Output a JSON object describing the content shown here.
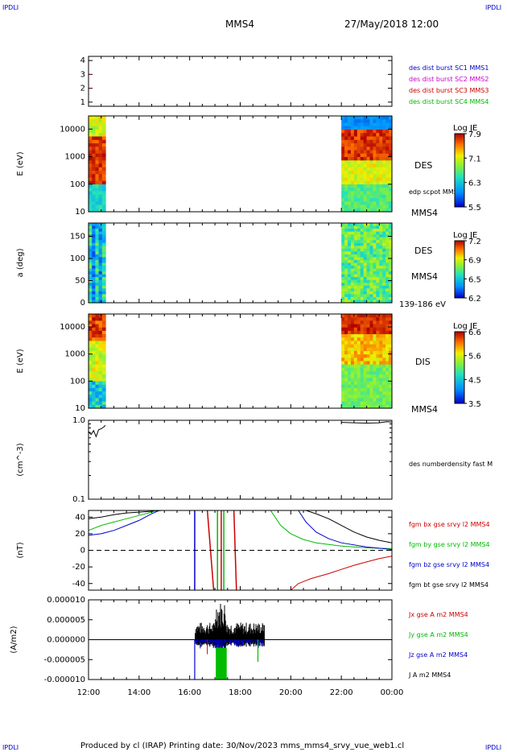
{
  "header": {
    "corner_left": "IPDLI",
    "corner_right": "IPDLI",
    "title": "MMS4",
    "datetime": "27/May/2018 12:00"
  },
  "footer": {
    "text": "Produced by cl (IRAP)   Printing date: 30/Nov/2023   mms_mms4_srvy_vue_web1.cl",
    "corner_left": "IPDLI",
    "corner_right": "IPDLI"
  },
  "colors": {
    "frame": "#000000",
    "blue": "#0000cc",
    "magenta": "#cc00cc",
    "red": "#cc0000",
    "green": "#00bb00",
    "black": "#000000"
  },
  "chart_data": [
    {
      "type": "line",
      "panel": "burst-flags",
      "ylabel": "",
      "ylim": [
        0.7,
        4.3
      ],
      "yticks": [
        "1",
        "2",
        "3",
        "4"
      ],
      "legend": [
        {
          "name": "des dist burst SC1 MMS1",
          "color": "#0000cc"
        },
        {
          "name": "des dist burst SC2 MMS2",
          "color": "#cc00cc"
        },
        {
          "name": "des dist burst SC3 MMS3",
          "color": "#cc0000"
        },
        {
          "name": "des dist burst SC4 MMS4",
          "color": "#00bb00"
        }
      ],
      "marks": [
        {
          "x": 0.05,
          "y": 3,
          "color": "#cc0000"
        },
        {
          "x": 0.05,
          "y": 2,
          "color": "#cc0000"
        }
      ]
    },
    {
      "type": "heatmap",
      "panel": "des-energy",
      "ylabel": "E (eV)",
      "scale": "log",
      "ylim": [
        10,
        30000
      ],
      "yticks": [
        "10",
        "100",
        "1000",
        "10000"
      ],
      "side_label": "DES",
      "overlay_label": "edp scpot MMS4",
      "bottom_label": "MMS4",
      "colorbar": {
        "title": "Log JE",
        "ticks": [
          "7.9",
          "7.1",
          "6.3",
          "5.5"
        ]
      },
      "data_intervals": [
        [
          0.0,
          0.67
        ],
        [
          10.0,
          12.0
        ]
      ]
    },
    {
      "type": "heatmap",
      "panel": "des-pitch",
      "ylabel": "a (deg)",
      "ylim": [
        0,
        180
      ],
      "yticks": [
        "0",
        "50",
        "100",
        "150"
      ],
      "side_label": "DES",
      "side_label2": "MMS4",
      "bottom_label": "139-186 eV",
      "colorbar": {
        "title": "Log JE",
        "ticks": [
          "7.2",
          "6.9",
          "6.5",
          "6.2"
        ]
      },
      "data_intervals": [
        [
          0.0,
          0.67
        ],
        [
          10.0,
          12.0
        ]
      ]
    },
    {
      "type": "heatmap",
      "panel": "dis-energy",
      "ylabel": "E (eV)",
      "scale": "log",
      "ylim": [
        10,
        30000
      ],
      "yticks": [
        "10",
        "100",
        "1000",
        "10000"
      ],
      "side_label": "DIS",
      "bottom_label": "MMS4",
      "colorbar": {
        "title": "Log JE",
        "ticks": [
          "6.6",
          "5.6",
          "4.5",
          "3.5"
        ]
      },
      "data_intervals": [
        [
          0.0,
          0.67
        ],
        [
          10.0,
          12.0
        ]
      ]
    },
    {
      "type": "line",
      "panel": "density",
      "ylabel": "(cm^-3)",
      "scale": "log",
      "ylim": [
        0.1,
        1.0
      ],
      "yticks": [
        "0.1",
        "1.0"
      ],
      "legend": [
        {
          "name": "des numberdensity fast M",
          "color": "#000000"
        }
      ],
      "series": [
        {
          "name": "seg1",
          "x": [
            0.0,
            0.1,
            0.2,
            0.3,
            0.4,
            0.5,
            0.6,
            0.67
          ],
          "y": [
            0.72,
            0.66,
            0.74,
            0.62,
            0.76,
            0.78,
            0.82,
            0.86
          ]
        },
        {
          "name": "seg2",
          "x": [
            10.0,
            10.5,
            11.0,
            11.5,
            11.8,
            12.0
          ],
          "y": [
            0.94,
            0.93,
            0.92,
            0.93,
            0.96,
            0.95
          ]
        }
      ]
    },
    {
      "type": "line",
      "panel": "fgm",
      "ylabel": "(nT)",
      "ylim": [
        -48,
        48
      ],
      "yticks": [
        "-40",
        "-20",
        "0",
        "20",
        "40"
      ],
      "legend": [
        {
          "name": "fgm bx gse srvy l2 MMS4",
          "color": "#cc0000"
        },
        {
          "name": "fgm by gse srvy l2 MMS4",
          "color": "#00bb00"
        },
        {
          "name": "fgm bz gse srvy l2 MMS4",
          "color": "#0000cc"
        },
        {
          "name": "fgm bt gse srvy l2 MMS4",
          "color": "#000000"
        }
      ],
      "series": [
        {
          "name": "bt",
          "color": "#000000",
          "x": [
            0,
            0.5,
            1,
            1.5,
            2,
            2.5,
            2.9,
            3.0
          ],
          "y": [
            38,
            40,
            43,
            45,
            46,
            47,
            48,
            48
          ]
        },
        {
          "name": "bt2",
          "color": "#000000",
          "x": [
            8.6,
            9,
            9.5,
            10,
            10.5,
            11,
            11.5,
            12
          ],
          "y": [
            48,
            44,
            38,
            30,
            22,
            16,
            12,
            9
          ]
        },
        {
          "name": "by",
          "color": "#00bb00",
          "x": [
            0,
            0.5,
            1,
            1.5,
            2,
            2.5,
            2.7
          ],
          "y": [
            24,
            30,
            34,
            38,
            42,
            46,
            48
          ]
        },
        {
          "name": "by2",
          "color": "#00bb00",
          "x": [
            7.2,
            7.6,
            8,
            8.5,
            9,
            9.5,
            10,
            11,
            12
          ],
          "y": [
            48,
            30,
            20,
            13,
            9,
            7,
            5,
            3,
            2
          ]
        },
        {
          "name": "bz",
          "color": "#0000cc",
          "x": [
            0,
            0.5,
            1,
            1.5,
            2,
            2.5,
            2.8
          ],
          "y": [
            18,
            20,
            24,
            30,
            36,
            44,
            48
          ]
        },
        {
          "name": "bz2",
          "color": "#0000cc",
          "x": [
            8.3,
            8.6,
            9,
            9.5,
            10,
            11,
            12
          ],
          "y": [
            48,
            34,
            22,
            14,
            9,
            4,
            1
          ]
        },
        {
          "name": "bx",
          "color": "#cc0000",
          "x": [
            8.0,
            8.3,
            8.8,
            9.5,
            10,
            10.5,
            11,
            11.5,
            12
          ],
          "y": [
            -48,
            -40,
            -34,
            -28,
            -23,
            -18,
            -14,
            -10,
            -7
          ]
        }
      ],
      "verticals": [
        {
          "x": 4.2,
          "color": "#0000cc"
        },
        {
          "x": 4.7,
          "color": "#cc0000",
          "y1": 48,
          "y2": -48,
          "x2": 4.95
        },
        {
          "x": 5.1,
          "color": "#00bb00"
        },
        {
          "x": 5.25,
          "color": "#cc0000"
        },
        {
          "x": 5.35,
          "color": "#00bb00"
        },
        {
          "x": 5.75,
          "color": "#cc0000",
          "y1": 48,
          "y2": -48,
          "x2": 5.85
        }
      ],
      "zero_line": true
    },
    {
      "type": "line",
      "panel": "current",
      "ylabel": "(A/m2)",
      "ylim": [
        -1e-05,
        1e-05
      ],
      "yticks": [
        "-0.000010",
        "-0.000005",
        "0.000000",
        "0.000005",
        "0.000010"
      ],
      "legend": [
        {
          "name": "Jx gse A m2 MMS4",
          "color": "#cc0000"
        },
        {
          "name": "Jy gse A m2 MMS4",
          "color": "#00bb00"
        },
        {
          "name": "Jz gse A m2 MMS4",
          "color": "#0000cc"
        },
        {
          "name": "J A m2 MMS4",
          "color": "#000000"
        }
      ],
      "xticks": [
        "12:00",
        "14:00",
        "16:00",
        "18:00",
        "20:00",
        "22:00",
        "00:00"
      ],
      "xlim": [
        0,
        12
      ]
    }
  ]
}
